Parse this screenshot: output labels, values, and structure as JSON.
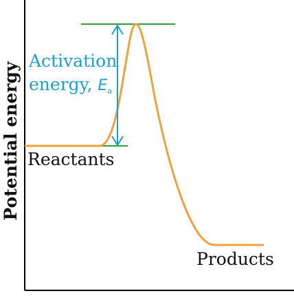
{
  "diagram": {
    "ylabel": "Potential energy",
    "activation_line1": "Activation",
    "activation_line2": "energy, ",
    "activation_symbol": "E",
    "activation_subscript": "a",
    "reactants_label": "Reactants",
    "products_label": "Products",
    "colors": {
      "curve": "#f0a040",
      "level_lines": "#2e9e3a",
      "arrow": "#1a9fd0",
      "activation_text": "#1a9fd0",
      "text": "#111111",
      "axes": "#000000"
    }
  }
}
